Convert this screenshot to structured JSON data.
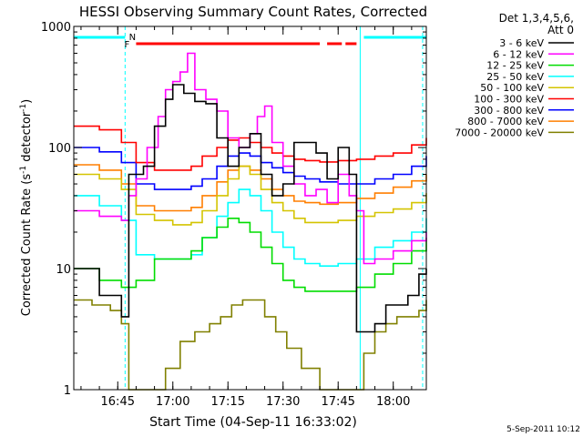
{
  "chart_data": {
    "type": "line",
    "title": "HESSI Observing Summary Count Rates, Corrected",
    "xlabel": "Start Time (04-Sep-11 16:33:02)",
    "ylabel_main": "Corrected Count Rate (s",
    "ylabel_sup1": "-1",
    "ylabel_mid": " detector",
    "ylabel_sup2": "-1",
    "ylabel_end": ")",
    "x_scale": "time",
    "x_range": [
      "16:33:02",
      "18:09:00"
    ],
    "y_scale": "log",
    "y_range": [
      1,
      1000
    ],
    "x_ticks": [
      {
        "t": "16:45",
        "label": "16:45"
      },
      {
        "t": "17:00",
        "label": "17:00"
      },
      {
        "t": "17:15",
        "label": "17:15"
      },
      {
        "t": "17:30",
        "label": "17:30"
      },
      {
        "t": "17:45",
        "label": "17:45"
      },
      {
        "t": "18:00",
        "label": "18:00"
      }
    ],
    "y_ticks": [
      {
        "v": 1,
        "label": "1"
      },
      {
        "v": 10,
        "label": "10"
      },
      {
        "v": 100,
        "label": "100"
      },
      {
        "v": 1000,
        "label": "1000"
      }
    ],
    "legend_header": [
      "Det 1,3,4,5,6,",
      "Att 0"
    ],
    "legend_position": "right",
    "series": [
      {
        "name": "3 - 6 keV",
        "color": "#000000",
        "x": [
          "16:33",
          "16:40",
          "16:46",
          "16:48",
          "16:52",
          "16:55",
          "16:58",
          "17:00",
          "17:03",
          "17:06",
          "17:09",
          "17:12",
          "17:15",
          "17:18",
          "17:21",
          "17:24",
          "17:27",
          "17:30",
          "17:33",
          "17:36",
          "17:39",
          "17:42",
          "17:45",
          "17:48",
          "17:50",
          "17:52",
          "17:55",
          "17:58",
          "18:01",
          "18:04",
          "18:07",
          "18:09"
        ],
        "y": [
          10,
          6,
          4,
          60,
          70,
          150,
          250,
          330,
          280,
          240,
          230,
          120,
          70,
          100,
          130,
          60,
          40,
          50,
          110,
          110,
          90,
          55,
          100,
          60,
          3,
          3,
          3.5,
          5,
          5,
          6,
          9,
          10
        ]
      },
      {
        "name": "6 - 12 keV",
        "color": "#ff00ff",
        "x": [
          "16:33",
          "16:40",
          "16:46",
          "16:48",
          "16:50",
          "16:53",
          "16:56",
          "16:58",
          "17:00",
          "17:02",
          "17:04",
          "17:06",
          "17:09",
          "17:12",
          "17:15",
          "17:18",
          "17:21",
          "17:23",
          "17:25",
          "17:27",
          "17:30",
          "17:33",
          "17:36",
          "17:39",
          "17:42",
          "17:45",
          "17:48",
          "17:50",
          "17:52",
          "17:55",
          "18:00",
          "18:05",
          "18:09"
        ],
        "y": [
          30,
          27,
          25,
          40,
          55,
          100,
          180,
          300,
          350,
          420,
          600,
          300,
          250,
          200,
          120,
          100,
          130,
          180,
          220,
          110,
          70,
          50,
          40,
          45,
          35,
          60,
          40,
          30,
          11,
          12,
          14,
          17,
          20
        ]
      },
      {
        "name": "12 - 25 keV",
        "color": "#00dd00",
        "x": [
          "16:33",
          "16:40",
          "16:46",
          "16:50",
          "16:55",
          "17:00",
          "17:05",
          "17:08",
          "17:12",
          "17:15",
          "17:18",
          "17:21",
          "17:24",
          "17:27",
          "17:30",
          "17:33",
          "17:36",
          "17:40",
          "17:45",
          "17:50",
          "17:55",
          "18:00",
          "18:05",
          "18:09"
        ],
        "y": [
          10,
          8,
          7,
          8,
          12,
          12,
          14,
          18,
          22,
          26,
          24,
          20,
          15,
          11,
          8,
          7,
          6.5,
          6.5,
          6.5,
          7,
          9,
          11,
          14,
          18
        ]
      },
      {
        "name": "25 - 50 keV",
        "color": "#00ffff",
        "x": [
          "16:33",
          "16:40",
          "16:46",
          "16:50",
          "16:55",
          "17:00",
          "17:05",
          "17:08",
          "17:12",
          "17:15",
          "17:18",
          "17:21",
          "17:24",
          "17:27",
          "17:30",
          "17:33",
          "17:36",
          "17:40",
          "17:45",
          "17:50",
          "17:55",
          "18:00",
          "18:05",
          "18:09"
        ],
        "y": [
          40,
          33,
          25,
          13,
          12,
          12,
          13,
          18,
          27,
          35,
          45,
          40,
          30,
          20,
          15,
          12,
          11,
          10.5,
          11,
          12,
          15,
          17,
          20,
          26
        ]
      },
      {
        "name": "50 - 100 keV",
        "color": "#d4c400",
        "x": [
          "16:33",
          "16:40",
          "16:46",
          "16:50",
          "16:55",
          "17:00",
          "17:05",
          "17:08",
          "17:12",
          "17:15",
          "17:18",
          "17:21",
          "17:24",
          "17:27",
          "17:30",
          "17:33",
          "17:36",
          "17:40",
          "17:45",
          "17:50",
          "17:55",
          "18:00",
          "18:05",
          "18:09"
        ],
        "y": [
          60,
          55,
          45,
          28,
          25,
          23,
          24,
          30,
          40,
          55,
          70,
          60,
          45,
          35,
          30,
          26,
          24,
          24,
          25,
          27,
          29,
          31,
          35,
          42
        ]
      },
      {
        "name": "100 - 300 keV",
        "color": "#ff0000",
        "x": [
          "16:33",
          "16:40",
          "16:46",
          "16:50",
          "16:55",
          "17:00",
          "17:05",
          "17:08",
          "17:12",
          "17:15",
          "17:18",
          "17:21",
          "17:24",
          "17:27",
          "17:30",
          "17:33",
          "17:36",
          "17:40",
          "17:45",
          "17:50",
          "17:55",
          "18:00",
          "18:05",
          "18:09"
        ],
        "y": [
          150,
          140,
          110,
          75,
          65,
          65,
          70,
          85,
          100,
          115,
          120,
          110,
          100,
          90,
          85,
          80,
          78,
          76,
          78,
          80,
          85,
          90,
          105,
          120
        ]
      },
      {
        "name": "300 - 800 keV",
        "color": "#0000ff",
        "x": [
          "16:33",
          "16:40",
          "16:46",
          "16:50",
          "16:55",
          "17:00",
          "17:05",
          "17:08",
          "17:12",
          "17:15",
          "17:18",
          "17:21",
          "17:24",
          "17:27",
          "17:30",
          "17:33",
          "17:36",
          "17:40",
          "17:45",
          "17:50",
          "17:55",
          "18:00",
          "18:05",
          "18:09"
        ],
        "y": [
          100,
          92,
          75,
          50,
          45,
          45,
          48,
          55,
          70,
          85,
          90,
          85,
          75,
          68,
          62,
          58,
          55,
          52,
          50,
          50,
          55,
          60,
          70,
          85
        ]
      },
      {
        "name": "800 - 7000 keV",
        "color": "#ff7f00",
        "x": [
          "16:33",
          "16:40",
          "16:46",
          "16:50",
          "16:55",
          "17:00",
          "17:05",
          "17:08",
          "17:12",
          "17:15",
          "17:18",
          "17:21",
          "17:24",
          "17:27",
          "17:30",
          "17:33",
          "17:36",
          "17:40",
          "17:45",
          "17:50",
          "17:55",
          "18:00",
          "18:05",
          "18:09"
        ],
        "y": [
          72,
          65,
          50,
          33,
          30,
          30,
          32,
          40,
          52,
          65,
          70,
          65,
          55,
          45,
          40,
          36,
          35,
          34,
          35,
          38,
          42,
          47,
          53,
          60
        ]
      },
      {
        "name": "7000 - 20000 keV",
        "color": "#808000",
        "x": [
          "16:33",
          "16:38",
          "16:43",
          "16:46",
          "16:48",
          "16:55",
          "16:58",
          "17:02",
          "17:06",
          "17:10",
          "17:13",
          "17:16",
          "17:19",
          "17:22",
          "17:25",
          "17:28",
          "17:31",
          "17:35",
          "17:40",
          "17:45",
          "17:48",
          "17:52",
          "17:55",
          "17:58",
          "18:01",
          "18:04",
          "18:07",
          "18:09"
        ],
        "y": [
          5.5,
          5,
          4.5,
          3.5,
          1,
          1,
          1.5,
          2.5,
          3,
          3.5,
          4,
          5,
          5.5,
          5.5,
          4,
          3,
          2.2,
          1.5,
          1,
          1,
          1,
          2,
          3,
          3.5,
          4,
          4,
          4.5,
          5.5
        ]
      }
    ],
    "annotations": [
      {
        "label": "F",
        "color": "#ff0000"
      },
      {
        "label": "N",
        "color": "#00bbdd"
      }
    ],
    "eclipse_bars_cyan": [
      [
        "16:33",
        "16:47"
      ],
      [
        "17:52",
        "18:09"
      ]
    ],
    "flare_bar_red": [
      [
        "16:50",
        "17:40"
      ],
      [
        "17:42",
        "17:46"
      ],
      [
        "17:47",
        "17:50"
      ]
    ],
    "vertical_markers": [
      {
        "t": "16:47",
        "color": "#00ffff",
        "style": "dashed"
      },
      {
        "t": "17:51",
        "color": "#00ffff",
        "style": "solid"
      },
      {
        "t": "18:08",
        "color": "#00ffff",
        "style": "dashed"
      }
    ],
    "grid": false,
    "footer_date": "5-Sep-2011 10:12"
  }
}
